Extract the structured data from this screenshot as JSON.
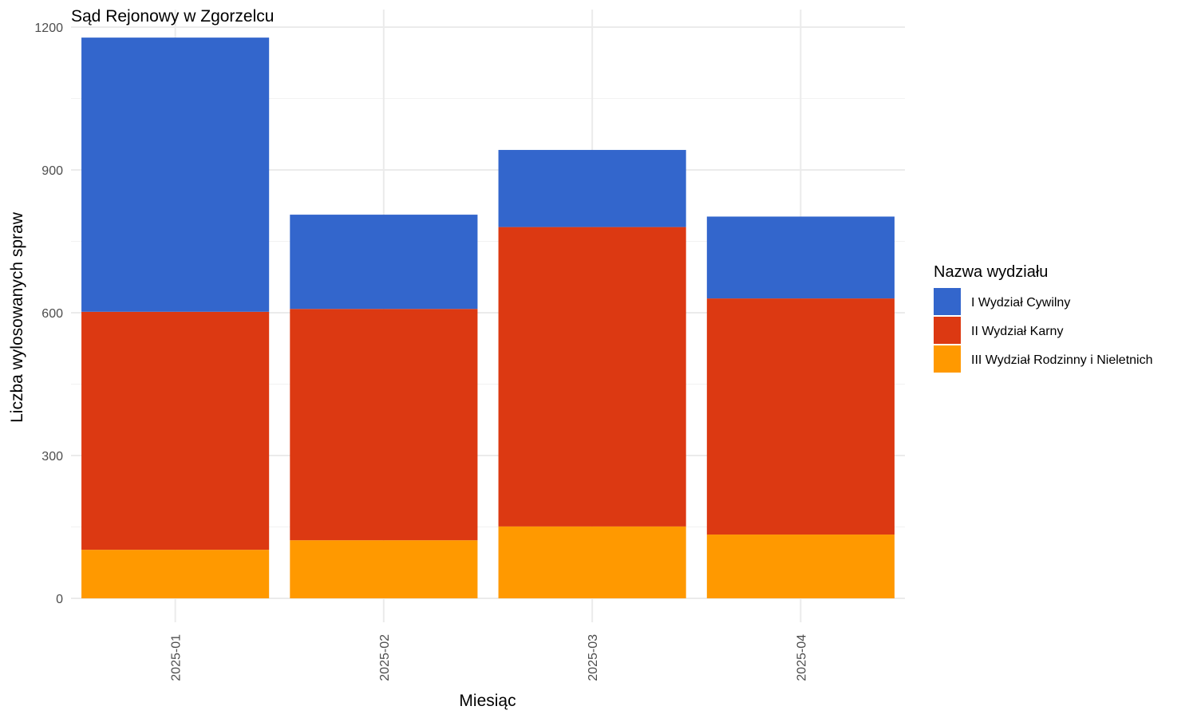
{
  "chart_data": {
    "type": "bar",
    "stacked": true,
    "title": "Sąd Rejonowy w Zgorzelcu",
    "xlabel": "Miesiąc",
    "ylabel": "Liczba wylosowanych spraw",
    "categories": [
      "2025-01",
      "2025-02",
      "2025-03",
      "2025-04"
    ],
    "ylim": [
      0,
      1230
    ],
    "yticks": [
      0,
      300,
      600,
      900,
      1200
    ],
    "grid": true,
    "legend": {
      "title": "Nazwa wydziału",
      "position": "right"
    },
    "series": [
      {
        "name": "III Wydział Rodzinny i Nieletnich",
        "color": "#FF9900",
        "values": [
          102,
          122,
          151,
          134
        ]
      },
      {
        "name": "II Wydział Karny",
        "color": "#DC3912",
        "values": [
          500,
          486,
          629,
          496
        ]
      },
      {
        "name": "I Wydział Cywilny",
        "color": "#3366CC",
        "values": [
          576,
          198,
          162,
          172
        ]
      }
    ],
    "legend_order": [
      "I Wydział Cywilny",
      "II Wydział Karny",
      "III Wydział Rodzinny i Nieletnich"
    ]
  }
}
